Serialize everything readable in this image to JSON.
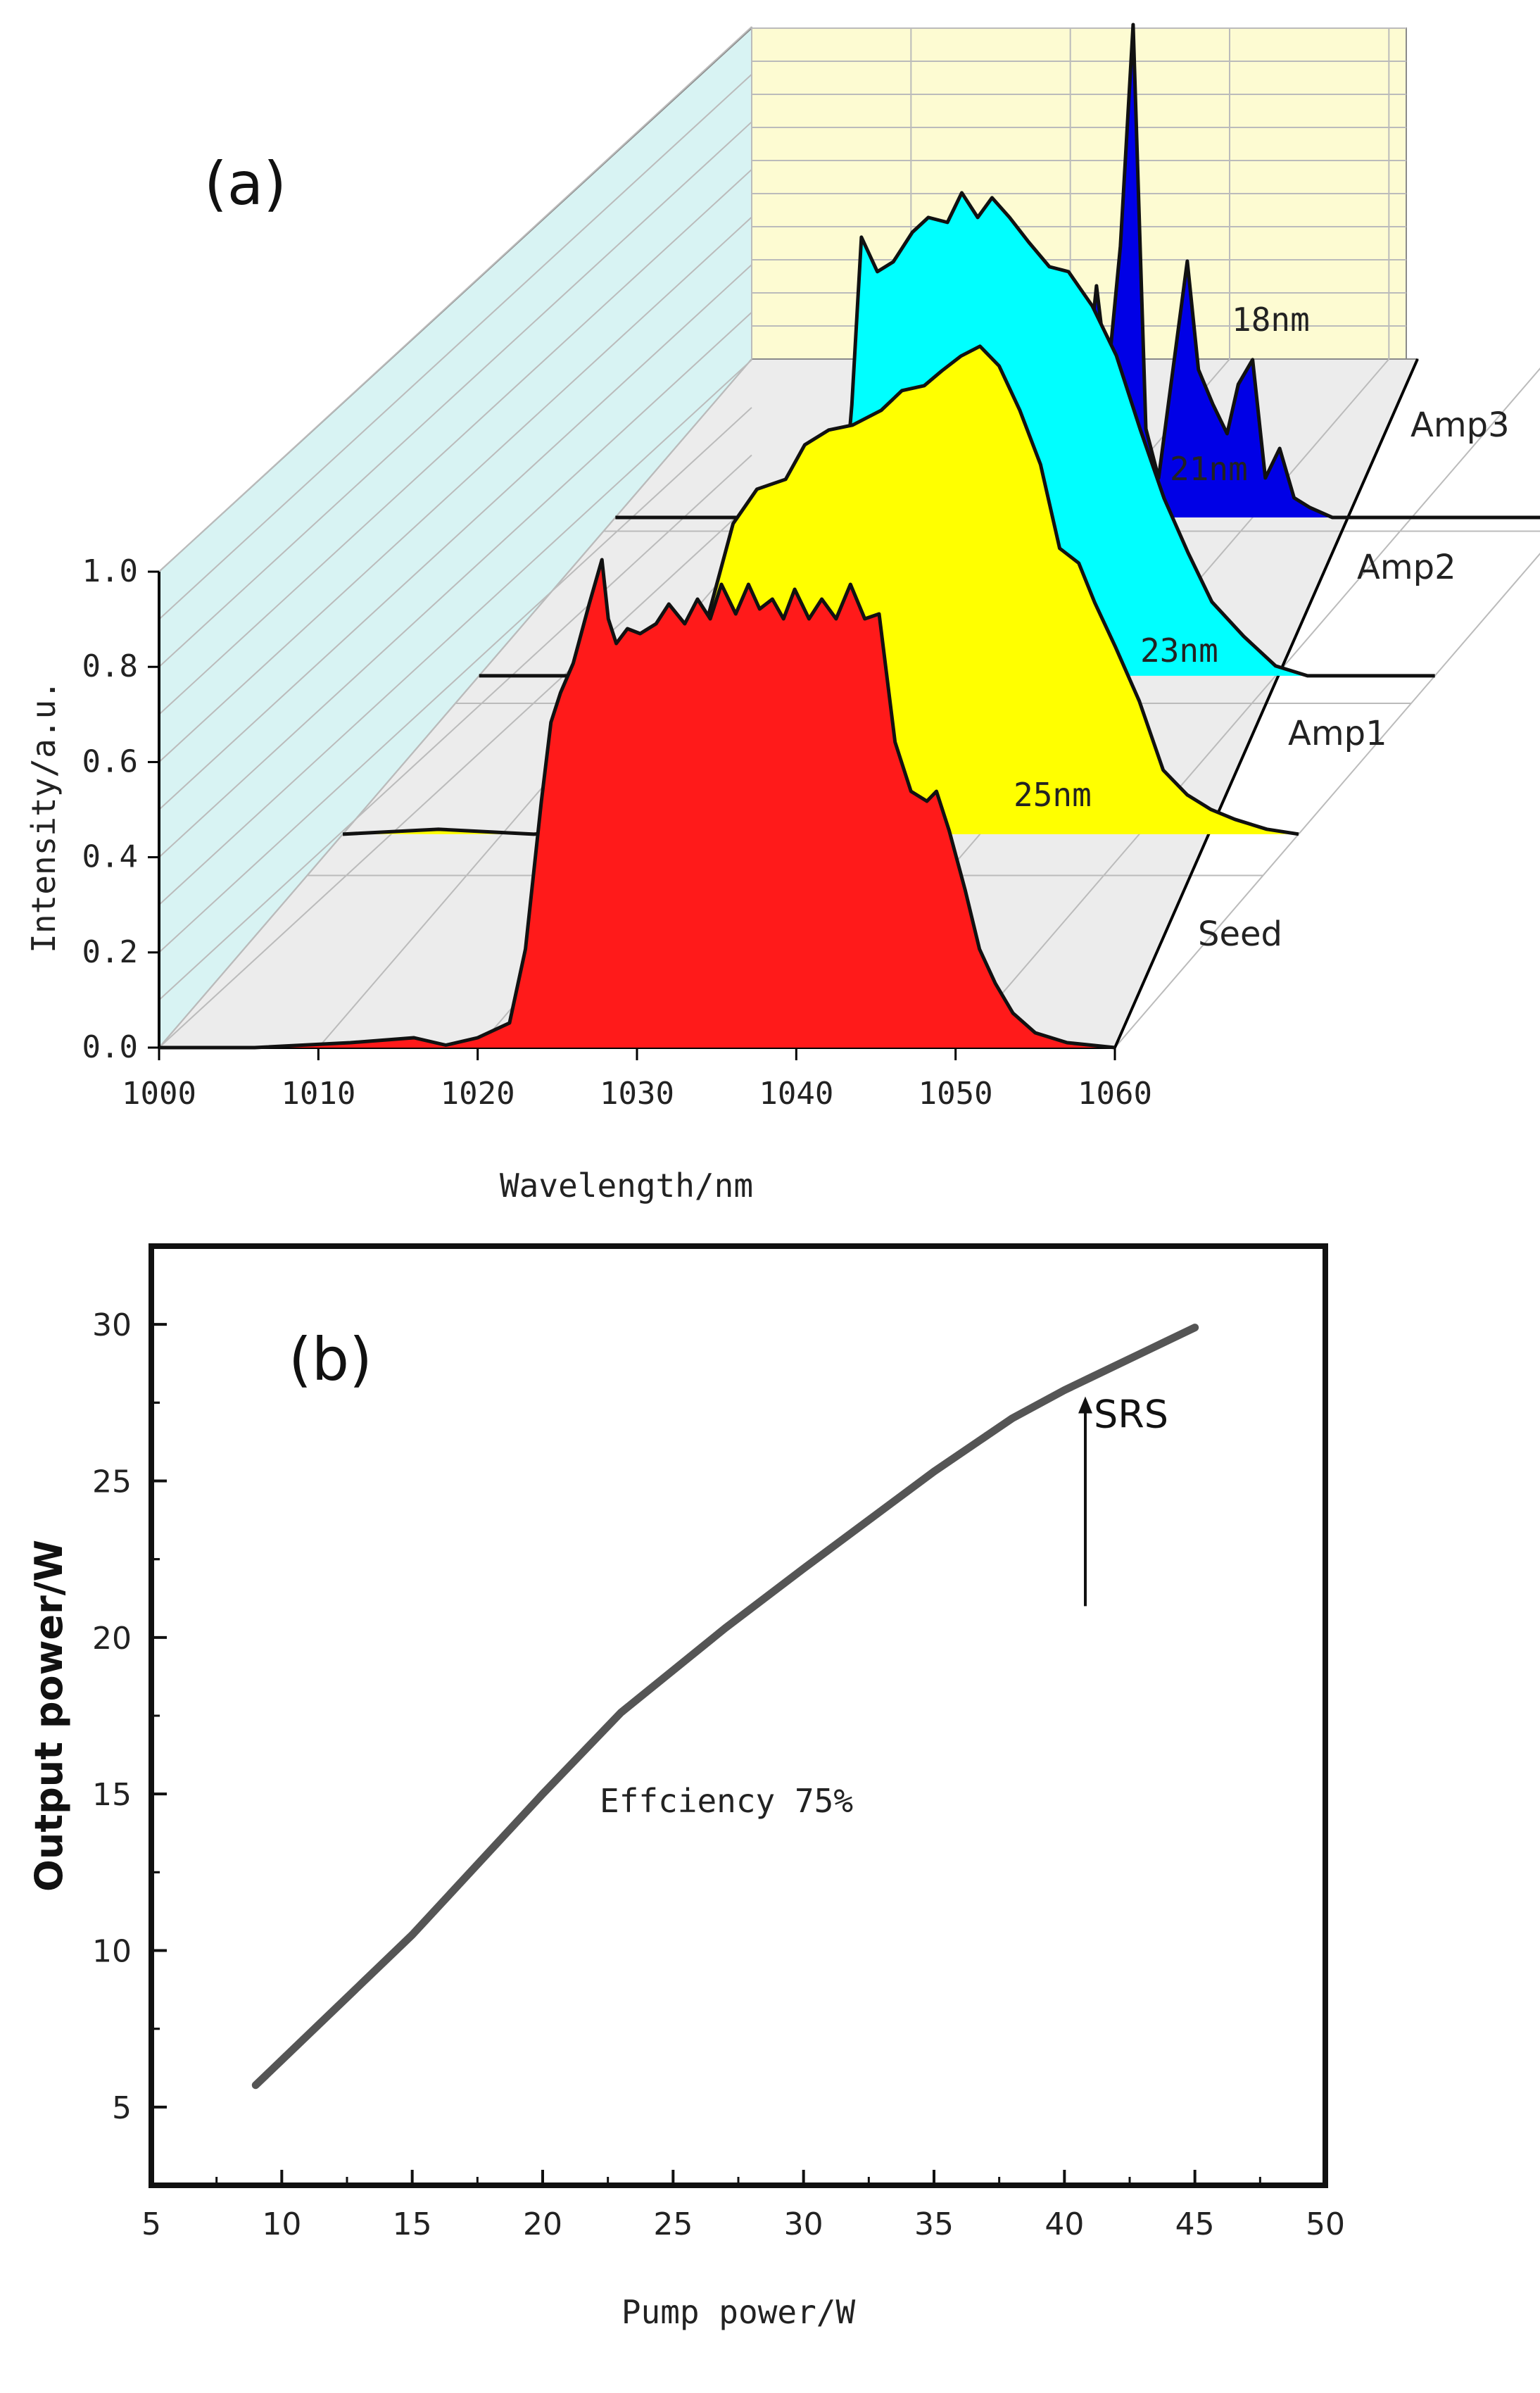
{
  "colors": {
    "seed": "#ff1a1a",
    "amp1": "#ffff00",
    "amp2": "#00ffff",
    "amp3": "#0000e6",
    "back_wall": "#fdfbd2",
    "side_wall": "#d8f3f3",
    "floor": "#ececec",
    "curve_b": "#555555"
  },
  "chart_data": [
    {
      "type": "area",
      "panel": "(a)",
      "title": "",
      "xlabel": "Wavelength/nm",
      "ylabel": "Intensity/a.u.",
      "xlim": [
        1000,
        1060
      ],
      "ylim": [
        0.0,
        1.0
      ],
      "x_ticks": [
        "1000",
        "1010",
        "1020",
        "1030",
        "1040",
        "1050",
        "1060"
      ],
      "y_ticks": [
        "0.0",
        "0.2",
        "0.4",
        "0.6",
        "0.8",
        "1.0"
      ],
      "series": [
        {
          "name": "Seed",
          "color_key": "seed",
          "bandwidth_label": "25nm",
          "x": [
            1006,
            1012,
            1016,
            1018,
            1020,
            1022,
            1023,
            1024,
            1024.6,
            1025.2,
            1026,
            1027,
            1027.8,
            1028.2,
            1028.7,
            1029.4,
            1030.2,
            1031.2,
            1032,
            1033,
            1033.8,
            1034.6,
            1035.3,
            1036.2,
            1037,
            1037.7,
            1038.5,
            1039.2,
            1039.9,
            1040.8,
            1041.6,
            1042.5,
            1043.4,
            1044.3,
            1045.2,
            1046.2,
            1047.2,
            1048.2,
            1048.8,
            1049.6,
            1050.6,
            1051.5,
            1052.5,
            1053.6,
            1055,
            1057,
            1060
          ],
          "values": [
            0.0,
            0.01,
            0.02,
            0.005,
            0.02,
            0.05,
            0.2,
            0.5,
            0.66,
            0.72,
            0.78,
            0.9,
            0.99,
            0.87,
            0.82,
            0.85,
            0.84,
            0.86,
            0.9,
            0.86,
            0.91,
            0.87,
            0.94,
            0.88,
            0.94,
            0.89,
            0.91,
            0.87,
            0.93,
            0.87,
            0.91,
            0.87,
            0.94,
            0.87,
            0.88,
            0.62,
            0.52,
            0.5,
            0.52,
            0.44,
            0.32,
            0.2,
            0.13,
            0.07,
            0.03,
            0.01,
            0.0
          ]
        },
        {
          "name": "Amp1",
          "color_key": "amp1",
          "bandwidth_label": "23nm",
          "x": [
            1000,
            1006,
            1012,
            1016,
            1019,
            1021,
            1023,
            1024.5,
            1026,
            1027.8,
            1029,
            1030.5,
            1032,
            1033.8,
            1035.1,
            1036.5,
            1037.6,
            1038.8,
            1040,
            1041.2,
            1042.5,
            1043.8,
            1045,
            1046.2,
            1047.2,
            1048.5,
            1050,
            1051.5,
            1053,
            1054.5,
            1056,
            1058,
            1060
          ],
          "values": [
            0.0,
            0.01,
            0.0,
            0.01,
            0.02,
            0.15,
            0.45,
            0.63,
            0.7,
            0.72,
            0.79,
            0.82,
            0.83,
            0.86,
            0.9,
            0.91,
            0.94,
            0.97,
            0.99,
            0.95,
            0.86,
            0.75,
            0.58,
            0.55,
            0.47,
            0.38,
            0.27,
            0.13,
            0.08,
            0.05,
            0.03,
            0.01,
            0.0
          ]
        },
        {
          "name": "Amp2",
          "color_key": "amp2",
          "bandwidth_label": "21nm",
          "x": [
            1018,
            1021,
            1022.5,
            1023.4,
            1024,
            1025,
            1026,
            1027.2,
            1028.2,
            1029.4,
            1030.3,
            1031.3,
            1032.2,
            1033.3,
            1034.5,
            1035.8,
            1037,
            1038.5,
            1040,
            1041.5,
            1043,
            1044.5,
            1046,
            1048,
            1050,
            1052,
            1056
          ],
          "values": [
            0.0,
            0.05,
            0.2,
            0.55,
            0.89,
            0.82,
            0.84,
            0.9,
            0.93,
            0.92,
            0.98,
            0.93,
            0.97,
            0.93,
            0.88,
            0.83,
            0.82,
            0.75,
            0.65,
            0.5,
            0.36,
            0.25,
            0.15,
            0.08,
            0.02,
            0.0,
            0.0
          ]
        },
        {
          "name": "Amp3",
          "color_key": "amp3",
          "bandwidth_label": "18nm",
          "x": [
            1026,
            1028,
            1029.5,
            1030.2,
            1030.9,
            1031.7,
            1032.5,
            1033.3,
            1034.1,
            1035,
            1035.9,
            1036.6,
            1037.5,
            1038.4,
            1039.1,
            1040,
            1040.8,
            1041.7,
            1042.6,
            1043.6,
            1045,
            1047
          ],
          "values": [
            0.0,
            0.05,
            0.25,
            0.47,
            0.28,
            0.55,
            1.0,
            0.18,
            0.08,
            0.3,
            0.52,
            0.3,
            0.23,
            0.17,
            0.27,
            0.32,
            0.08,
            0.14,
            0.04,
            0.02,
            0.0,
            0.0
          ]
        }
      ],
      "annotations": [
        "(a)",
        "25nm",
        "23nm",
        "21nm",
        "18nm"
      ]
    },
    {
      "type": "line",
      "panel": "(b)",
      "title": "",
      "xlabel": "Pump power/W",
      "ylabel": "Output power/W",
      "xlim": [
        5,
        50
      ],
      "ylim": [
        2.5,
        32.5
      ],
      "x_ticks": [
        "5",
        "10",
        "15",
        "20",
        "25",
        "30",
        "35",
        "40",
        "45",
        "50"
      ],
      "y_ticks": [
        "5",
        "10",
        "15",
        "20",
        "25",
        "30"
      ],
      "series": [
        {
          "name": "Output power",
          "x": [
            9,
            15,
            20,
            23,
            27,
            30,
            35,
            38,
            40,
            41,
            43,
            45
          ],
          "values": [
            5.7,
            10.5,
            15.0,
            17.6,
            20.3,
            22.2,
            25.3,
            27.0,
            27.9,
            28.3,
            29.1,
            29.9
          ]
        }
      ],
      "annotations": {
        "panel_label": "(b)",
        "efficiency": "Effciency 75%",
        "srs": "SRS",
        "srs_arrow": {
          "x": 40.8,
          "y_from": 21.0,
          "y_to": 27.7
        }
      }
    }
  ]
}
